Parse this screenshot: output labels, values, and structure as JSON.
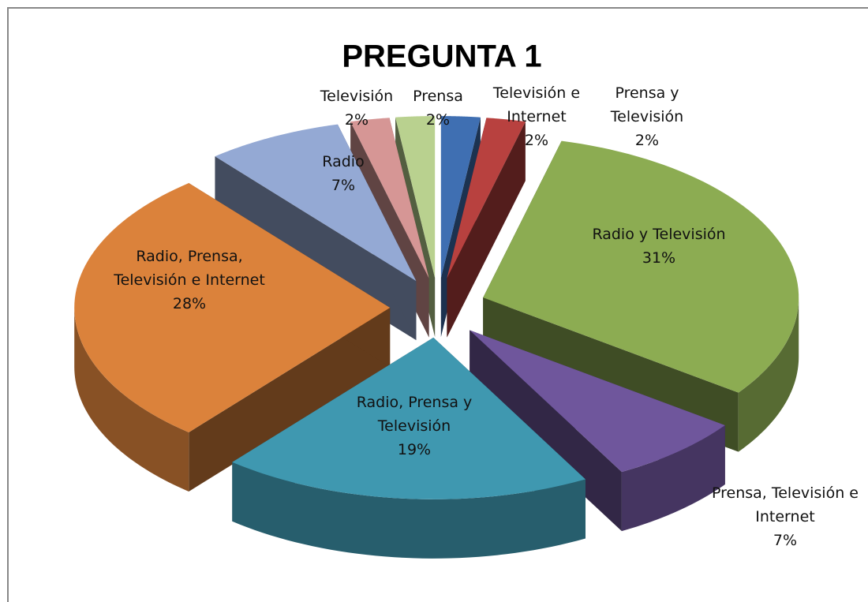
{
  "chart_data": {
    "type": "pie3d",
    "title": "PREGUNTA 1",
    "categories": [
      "Televisión e Internet",
      "Prensa y Televisión",
      "Radio y Televisión",
      "Prensa, Televisión e Internet",
      "Radio, Prensa y Televisión",
      "Radio, Prensa, Televisión e Internet",
      "Radio",
      "Televisión",
      "Prensa"
    ],
    "values": [
      2,
      2,
      31,
      7,
      19,
      28,
      7,
      2,
      2
    ],
    "value_labels": [
      "2%",
      "2%",
      "31%",
      "7%",
      "19%",
      "28%",
      "7%",
      "2%",
      "2%"
    ],
    "colors": [
      "#3f6fb2",
      "#b8413f",
      "#8cac52",
      "#6f569c",
      "#3f98b0",
      "#db823b",
      "#94a9d4",
      "#d69695",
      "#b9d18f"
    ]
  }
}
